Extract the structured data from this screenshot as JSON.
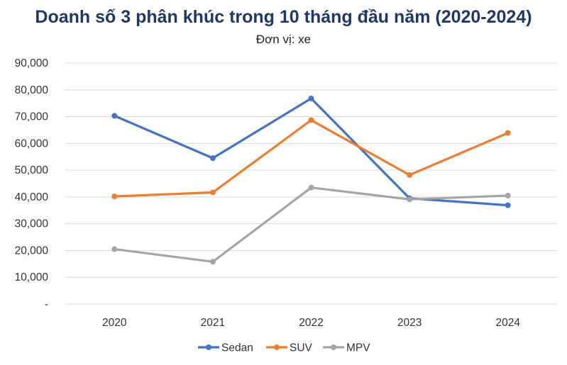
{
  "chart_data": {
    "type": "line",
    "title": "Doanh số 3 phân khúc trong 10 tháng đầu năm (2020-2024)",
    "subtitle": "Đơn vị: xe",
    "categories": [
      "2020",
      "2021",
      "2022",
      "2023",
      "2024"
    ],
    "y_ticks": [
      0,
      10000,
      20000,
      30000,
      40000,
      50000,
      60000,
      70000,
      80000,
      90000
    ],
    "y_tick_labels": [
      "-",
      "10,000",
      "20,000",
      "30,000",
      "40,000",
      "50,000",
      "60,000",
      "70,000",
      "80,000",
      "90,000"
    ],
    "ylim": [
      0,
      90000
    ],
    "grid": true,
    "legend_position": "bottom",
    "series": [
      {
        "name": "Sedan",
        "color": "#4472c4",
        "values": [
          70300,
          54500,
          76800,
          39500,
          36900
        ]
      },
      {
        "name": "SUV",
        "color": "#ed7d31",
        "values": [
          40200,
          41700,
          68700,
          48200,
          63900
        ]
      },
      {
        "name": "MPV",
        "color": "#a5a5a5",
        "values": [
          20500,
          15800,
          43500,
          39100,
          40500
        ]
      }
    ]
  }
}
